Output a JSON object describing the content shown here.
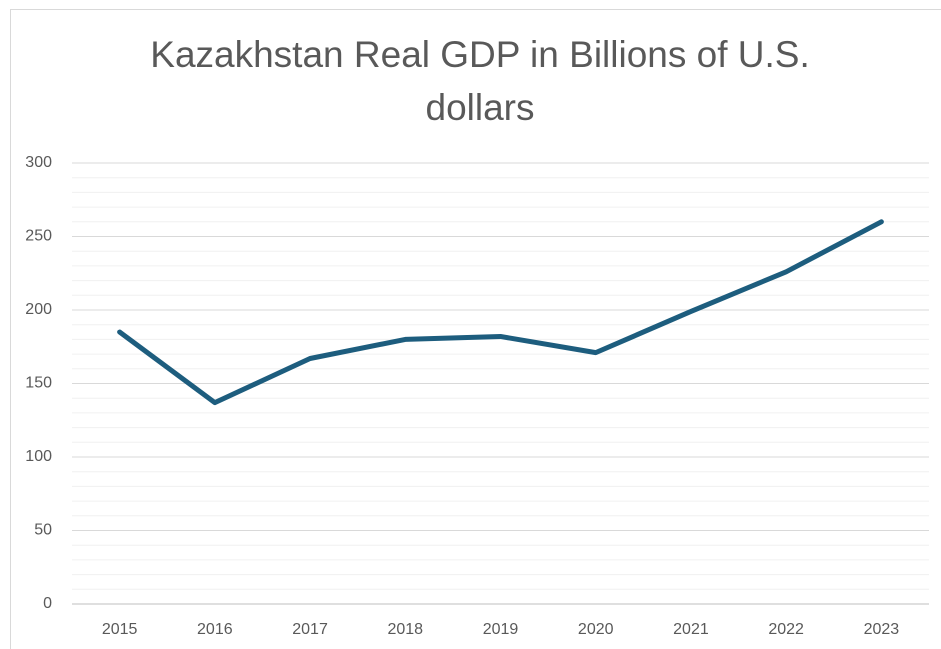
{
  "chart_data": {
    "type": "line",
    "title": "Kazakhstan Real GDP in Billions of U.S. dollars",
    "categories": [
      "2015",
      "2016",
      "2017",
      "2018",
      "2019",
      "2020",
      "2021",
      "2022",
      "2023"
    ],
    "values": [
      185,
      137,
      167,
      180,
      182,
      171,
      199,
      226,
      260
    ],
    "color": "#1d5d7e",
    "ylim": [
      0,
      300
    ],
    "yticks": [
      0,
      50,
      100,
      150,
      200,
      250,
      300
    ],
    "grid": true,
    "minor_grid": true
  }
}
